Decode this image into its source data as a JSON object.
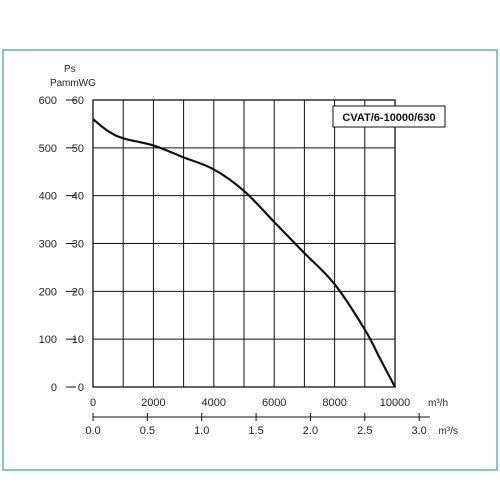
{
  "chart_data": {
    "type": "line",
    "model_label": "CVAT/6-10000/630",
    "x": [
      0,
      500,
      1000,
      2000,
      3000,
      4000,
      5000,
      6000,
      7000,
      8000,
      9000,
      9500,
      10000
    ],
    "series": [
      {
        "values": [
          56,
          53.5,
          52,
          50.5,
          48,
          45.5,
          41,
          34.5,
          28,
          21.5,
          12,
          6,
          0
        ]
      }
    ],
    "xlim": [
      0,
      10000
    ],
    "ylim": [
      0,
      60
    ],
    "x_ticks_top": [
      "0",
      "2000",
      "4000",
      "6000",
      "8000",
      "10000"
    ],
    "x_unit_top": "m³/h",
    "x_ticks_bottom": [
      "0.0",
      "0.5",
      "1.0",
      "1.5",
      "2.0",
      "2.5",
      "3.0"
    ],
    "x_unit_bottom": "m³/s",
    "y_ticks_left": [
      "0",
      "100",
      "200",
      "300",
      "400",
      "500",
      "600"
    ],
    "y_unit_left": "Pa",
    "y_ticks_right": [
      "0",
      "10",
      "20",
      "30",
      "40",
      "50",
      "60"
    ],
    "y_label_right": "Ps",
    "y_unit_right": "mmWG",
    "grid": true
  },
  "colors": {
    "frame": "#5fb9a8",
    "grid": "#111111",
    "curve": "#111111"
  }
}
